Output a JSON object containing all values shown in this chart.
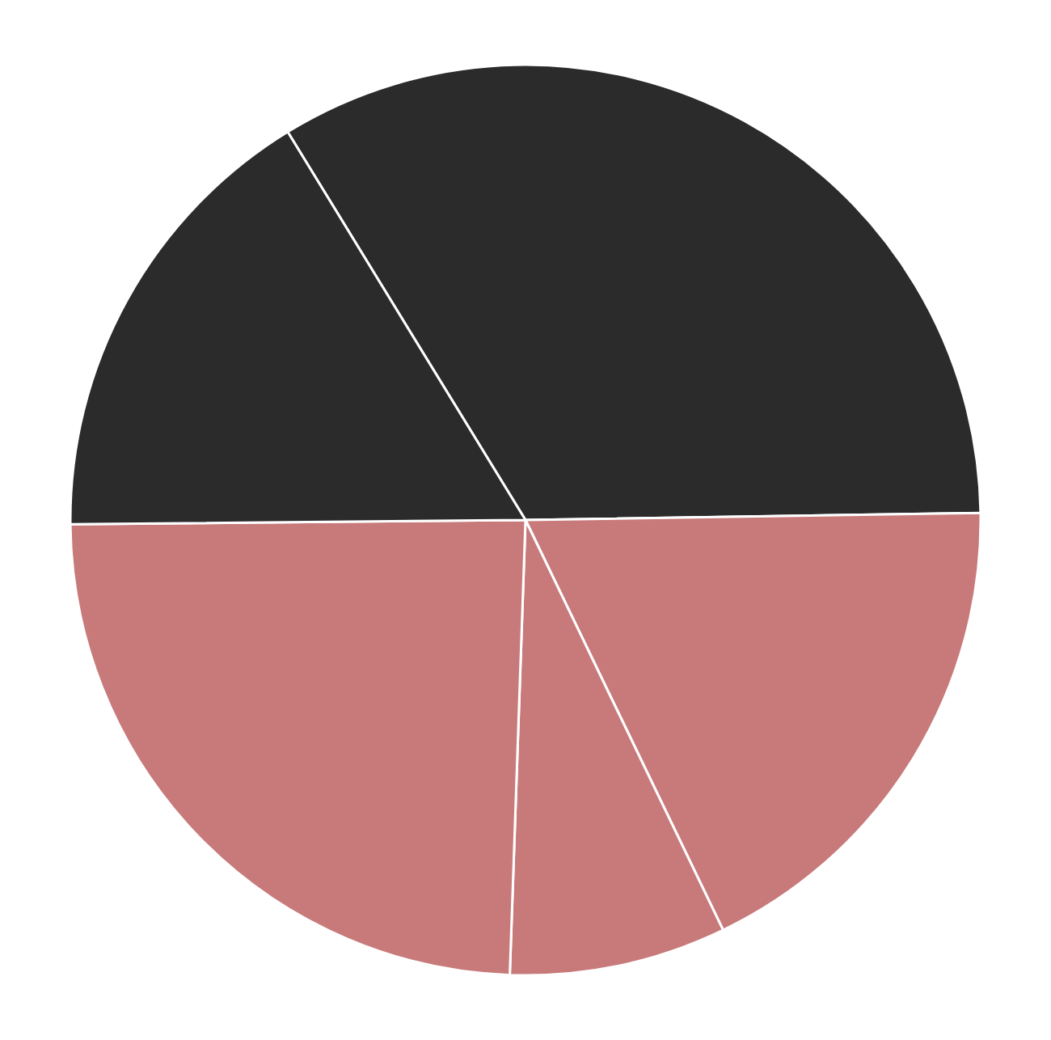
{
  "chart_data": {
    "type": "pie",
    "categories": [
      null,
      null,
      null,
      null,
      null
    ],
    "values": [
      33.5,
      18.1,
      7.7,
      24.3,
      16.4
    ],
    "colors": [
      "#2b2b2b",
      "#c87a7a",
      "#c87a7a",
      "#c87a7a",
      "#2b2b2b"
    ],
    "legend": false
  }
}
